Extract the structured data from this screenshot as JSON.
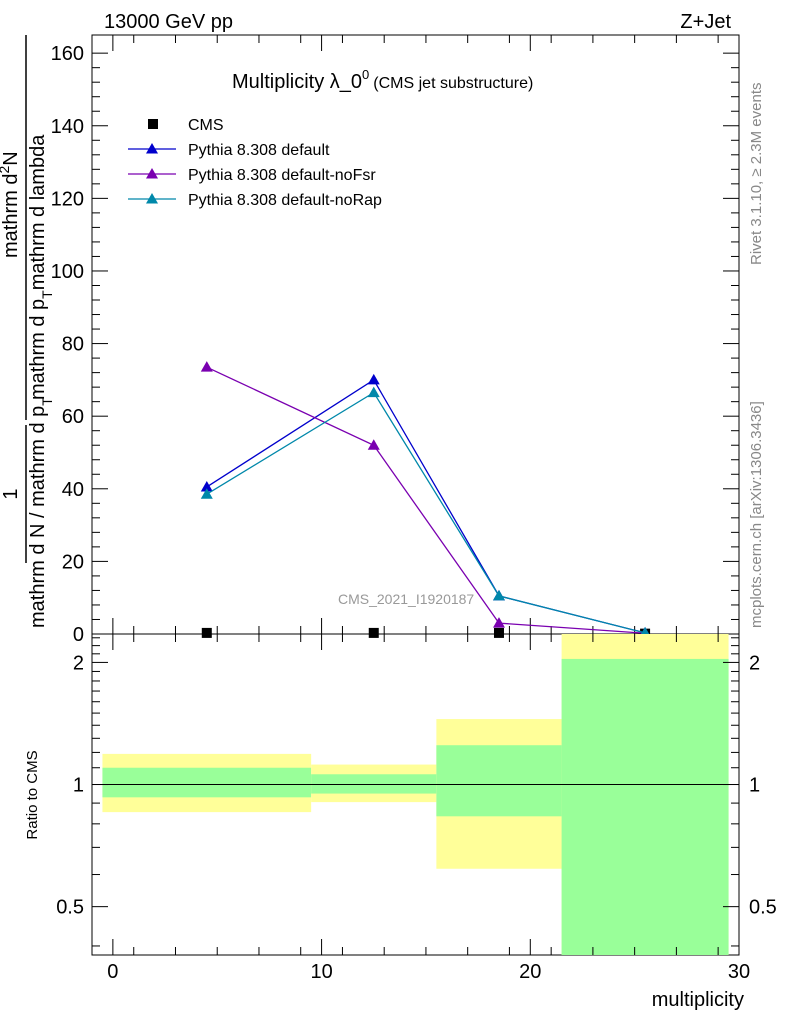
{
  "header": {
    "energy": "13000 GeV pp",
    "process": "Z+Jet"
  },
  "side_labels": {
    "rivet": "Rivet 3.1.10, ≥ 2.3M events",
    "mcplots": "mcplots.cern.ch [arXiv:1306.3436]"
  },
  "watermark": "CMS_2021_I1920187",
  "colors": {
    "cms": "#000000",
    "default": "#0000cc",
    "noFsr": "#7a00b0",
    "noRap": "#0088aa",
    "band_yellow": "#ffff99",
    "band_green": "#99ff99"
  },
  "chart_data": [
    {
      "type": "line",
      "title_main": "Multiplicity λ_0",
      "title_sup": "0",
      "title_note": "(CMS jet substructure)",
      "ylabel_top_left": "1",
      "ylabel_top_den": "mathrm d N / mathrm d p",
      "ylabel_top_den_sub": "T",
      "ylabel_bottom_num": "mathrm d",
      "ylabel_bottom_num_sup": "2",
      "ylabel_bottom_num_tail": "N",
      "ylabel_bottom_den": "mathrm d p",
      "ylabel_bottom_den_sub": "T",
      "ylabel_bottom_den_tail": "mathrm d lambda",
      "xlim": [
        -1,
        30
      ],
      "ylim": [
        0,
        165
      ],
      "yticks": [
        0,
        20,
        40,
        60,
        80,
        100,
        120,
        140,
        160
      ],
      "legend_position": "top-left",
      "series": [
        {
          "name": "CMS",
          "marker": "square",
          "x": [
            4.5,
            12.5,
            18.5,
            25.5
          ],
          "y": [
            0.3,
            0.3,
            0.3,
            0.1
          ]
        },
        {
          "name": "Pythia 8.308 default",
          "marker": "triangle",
          "x": [
            4.5,
            12.5,
            18.5,
            25.5
          ],
          "y": [
            40.5,
            70,
            10.5,
            0.3
          ]
        },
        {
          "name": "Pythia 8.308 default-noFsr",
          "marker": "triangle",
          "x": [
            4.5,
            12.5,
            18.5,
            25.5
          ],
          "y": [
            73.5,
            52,
            3,
            0.2
          ]
        },
        {
          "name": "Pythia 8.308 default-noRap",
          "marker": "triangle",
          "x": [
            4.5,
            12.5,
            18.5,
            25.5
          ],
          "y": [
            38.5,
            66.5,
            10.5,
            0.3
          ]
        }
      ]
    },
    {
      "type": "area",
      "ylabel": "Ratio to CMS",
      "xlabel": "multiplicity",
      "xlim": [
        -1,
        30
      ],
      "ylim": [
        0.38,
        2.35
      ],
      "log_y": true,
      "yticks": [
        0.5,
        1,
        2
      ],
      "ytick_labels": [
        "0.5",
        "1",
        "2"
      ],
      "xticks": [
        0,
        10,
        20,
        30
      ],
      "xtick_labels": [
        "0",
        "10",
        "20",
        "30"
      ],
      "reference_line": 1,
      "bins": [
        {
          "xlo": -0.5,
          "xhi": 9.5,
          "stat_lo": 0.93,
          "stat_hi": 1.1,
          "tot_lo": 0.855,
          "tot_hi": 1.19
        },
        {
          "xlo": 9.5,
          "xhi": 15.5,
          "stat_lo": 0.95,
          "stat_hi": 1.06,
          "tot_lo": 0.905,
          "tot_hi": 1.12
        },
        {
          "xlo": 15.5,
          "xhi": 21.5,
          "stat_lo": 0.835,
          "stat_hi": 1.25,
          "tot_lo": 0.62,
          "tot_hi": 1.45
        },
        {
          "xlo": 21.5,
          "xhi": 29.5,
          "stat_lo": 0.38,
          "stat_hi": 2.04,
          "tot_lo": 0.38,
          "tot_hi": 2.35
        }
      ]
    }
  ]
}
